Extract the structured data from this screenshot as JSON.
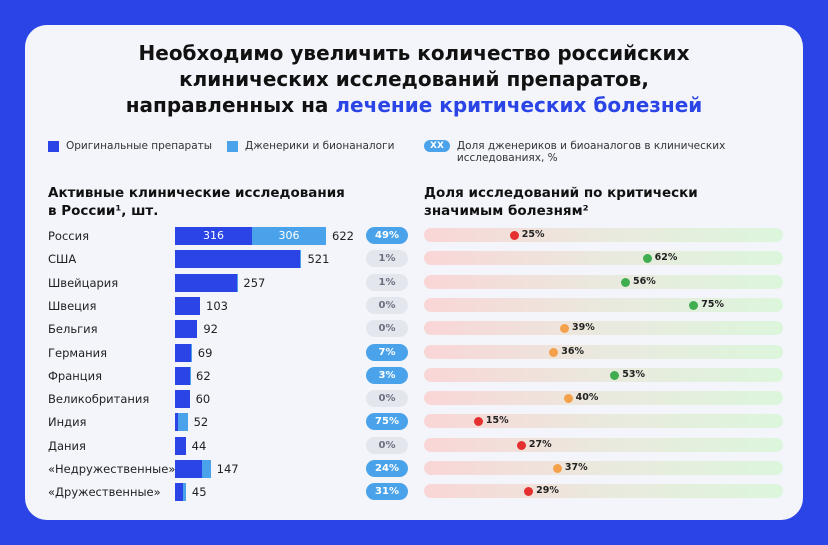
{
  "title": {
    "line1": "Необходимо увеличить количество российских",
    "line2": "клинических исследований препаратов,",
    "line3_plain": "направленных на ",
    "line3_highlight": "лечение критических болезней"
  },
  "legend": {
    "original": "Оригинальные препараты",
    "generic": "Дженерики и бионаналоги",
    "xx_badge": "XX",
    "xx_text_1": "Доля дженериков и биоаналогов в клинических",
    "xx_text_2": "исследованиях, %"
  },
  "colors": {
    "original": "#2b44e6",
    "generic": "#4aa3ea",
    "pill_gray": "#e4e6ee",
    "dot_red": "#e53030",
    "dot_orange": "#f5a04a",
    "dot_green": "#3fae4f"
  },
  "chart_data": [
    {
      "type": "bar",
      "stacked": true,
      "orientation": "horizontal",
      "title": "Активные клинические исследования в России¹, шт.",
      "title_1": "Активные клинические исследования",
      "title_2": "в России¹, шт.",
      "categories": [
        "Россия",
        "США",
        "Швейцария",
        "Швеция",
        "Бельгия",
        "Германия",
        "Франция",
        "Великобритания",
        "Индия",
        "Дания",
        "«Недружественные»",
        "«Дружественные»"
      ],
      "totals": [
        622,
        521,
        257,
        103,
        92,
        69,
        62,
        60,
        52,
        44,
        147,
        45
      ],
      "generic_share_pct": [
        49,
        1,
        1,
        0,
        0,
        7,
        3,
        0,
        75,
        0,
        24,
        31
      ],
      "inner_labels": {
        "original": "316",
        "generic": "306"
      }
    },
    {
      "type": "scatter",
      "title": "Доля исследований по критически значимым болезням²",
      "title_1": "Доля исследований по критически",
      "title_2": "значимым болезням²",
      "xlim": [
        0,
        100
      ],
      "values": [
        25,
        62,
        56,
        75,
        39,
        36,
        53,
        40,
        15,
        27,
        37,
        29
      ]
    }
  ]
}
